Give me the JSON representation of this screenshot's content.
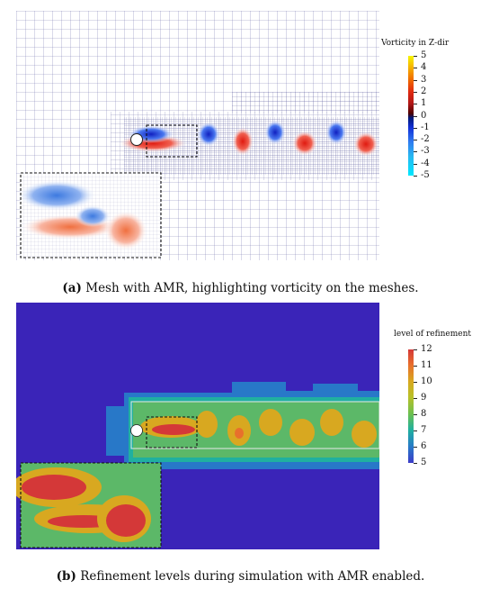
{
  "figure_a": {
    "colorbar_title": "Vorticity in Z-dir",
    "colorbar_ticks": [
      "5",
      "4",
      "3",
      "2",
      "1",
      "0",
      "-1",
      "-2",
      "-3",
      "-4",
      "-5"
    ],
    "caption_label": "(a)",
    "caption_text": "Mesh with AMR, highlighting vorticity on the meshes.",
    "colors": {
      "positive": "#e83020",
      "negative": "#2040e0",
      "mesh": "#6a6aa6"
    }
  },
  "figure_b": {
    "colorbar_title": "level of refinement",
    "colorbar_ticks": [
      "12",
      "11",
      "10",
      "9",
      "8",
      "7",
      "6",
      "5"
    ],
    "caption_label": "(b)",
    "caption_text": "Refinement levels during simulation with AMR enabled.",
    "colors": {
      "background": "#3a24b8",
      "level6": "#2878c8",
      "level7": "#20b0a0",
      "level8": "#6cc050",
      "level10": "#d8a820",
      "level12": "#d43838"
    }
  }
}
